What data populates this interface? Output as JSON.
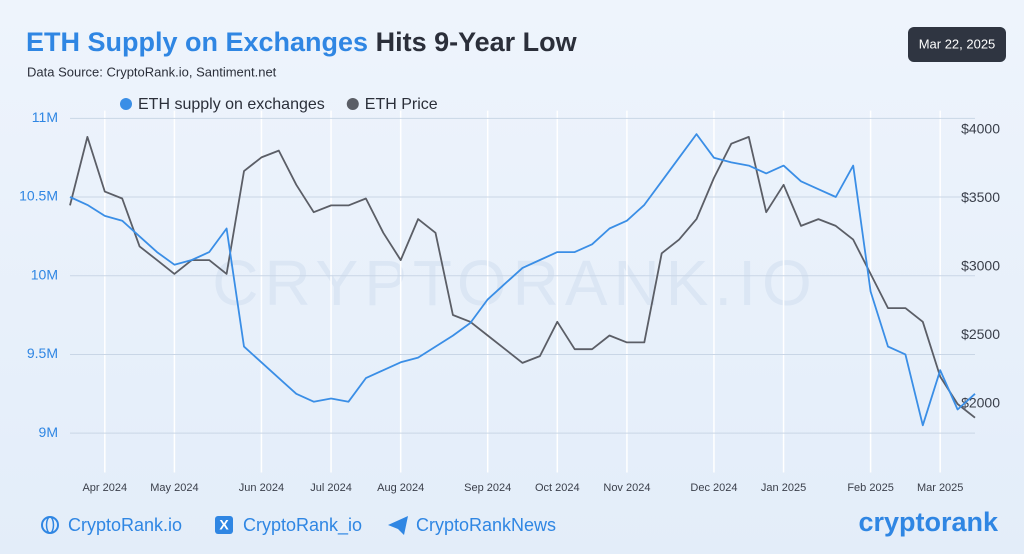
{
  "chart_data": {
    "type": "line",
    "title": [
      "ETH Supply on Exchanges",
      "Hits 9-Year Low"
    ],
    "subtitle": "Data Source: CryptoRank.io, Santiment.net",
    "date": "Mar 22, 2025",
    "watermark": "CRYPTORANK.IO",
    "footer_links": [
      "CryptoRank.io",
      "CryptoRank_io",
      "CryptoRankNews"
    ],
    "brand": "cryptorank",
    "categories": [
      null,
      null,
      "Apr 2024",
      null,
      null,
      null,
      "May 2024",
      null,
      null,
      null,
      null,
      "Jun 2024",
      null,
      null,
      null,
      "Jul 2024",
      null,
      null,
      null,
      "Aug 2024",
      null,
      null,
      null,
      null,
      "Sep 2024",
      null,
      null,
      null,
      "Oct 2024",
      null,
      null,
      null,
      "Nov 2024",
      null,
      null,
      null,
      null,
      "Dec 2024",
      null,
      null,
      null,
      "Jan 2025",
      null,
      null,
      null,
      null,
      "Feb 2025",
      null,
      null,
      null,
      "Mar 2025",
      null,
      null
    ],
    "series": [
      {
        "name": "ETH supply on exchanges",
        "color": "#3a8ee6",
        "values": [
          10500000,
          10450000,
          10380000,
          10350000,
          10250000,
          10150000,
          10070000,
          10100000,
          10150000,
          10300000,
          9550000,
          9450000,
          9350000,
          9250000,
          9200000,
          9220000,
          9200000,
          9350000,
          9400000,
          9450000,
          9480000,
          9550000,
          9620000,
          9700000,
          9850000,
          9950000,
          10050000,
          10100000,
          10150000,
          10150000,
          10200000,
          10300000,
          10350000,
          10450000,
          10600000,
          10750000,
          10900000,
          10750000,
          10720000,
          10700000,
          10650000,
          10700000,
          10600000,
          10550000,
          10500000,
          10700000,
          9900000,
          9550000,
          9500000,
          9050000,
          9400000,
          9150000,
          9250000
        ]
      },
      {
        "name": "ETH Price",
        "color": "#5b5e66",
        "axis": "y2",
        "values": [
          3450,
          3950,
          3550,
          3500,
          3150,
          3050,
          2950,
          3050,
          3050,
          2950,
          3700,
          3800,
          3850,
          3600,
          3400,
          3450,
          3450,
          3500,
          3250,
          3050,
          3350,
          3250,
          2650,
          2600,
          2500,
          2400,
          2300,
          2350,
          2600,
          2400,
          2400,
          2500,
          2450,
          2450,
          3100,
          3200,
          3350,
          3650,
          3900,
          3950,
          3400,
          3600,
          3300,
          3350,
          3300,
          3200,
          2950,
          2700,
          2700,
          2600,
          2200,
          2000,
          1900
        ]
      }
    ],
    "ylim": [
      8750000,
      11100000
    ],
    "yticks": [
      {
        "value": 9000000,
        "label": "9M"
      },
      {
        "value": 9500000,
        "label": "9.5M"
      },
      {
        "value": 10000000,
        "label": "10M"
      },
      {
        "value": 10500000,
        "label": "10.5M"
      },
      {
        "value": 11000000,
        "label": "11M"
      }
    ],
    "y2lim": [
      1500,
      4200
    ],
    "y2ticks": [
      {
        "value": 2000,
        "label": "$2000"
      },
      {
        "value": 2500,
        "label": "$2500"
      },
      {
        "value": 3000,
        "label": "$3000"
      },
      {
        "value": 3500,
        "label": "$3500"
      },
      {
        "value": 4000,
        "label": "$4000"
      }
    ],
    "grid": true
  }
}
